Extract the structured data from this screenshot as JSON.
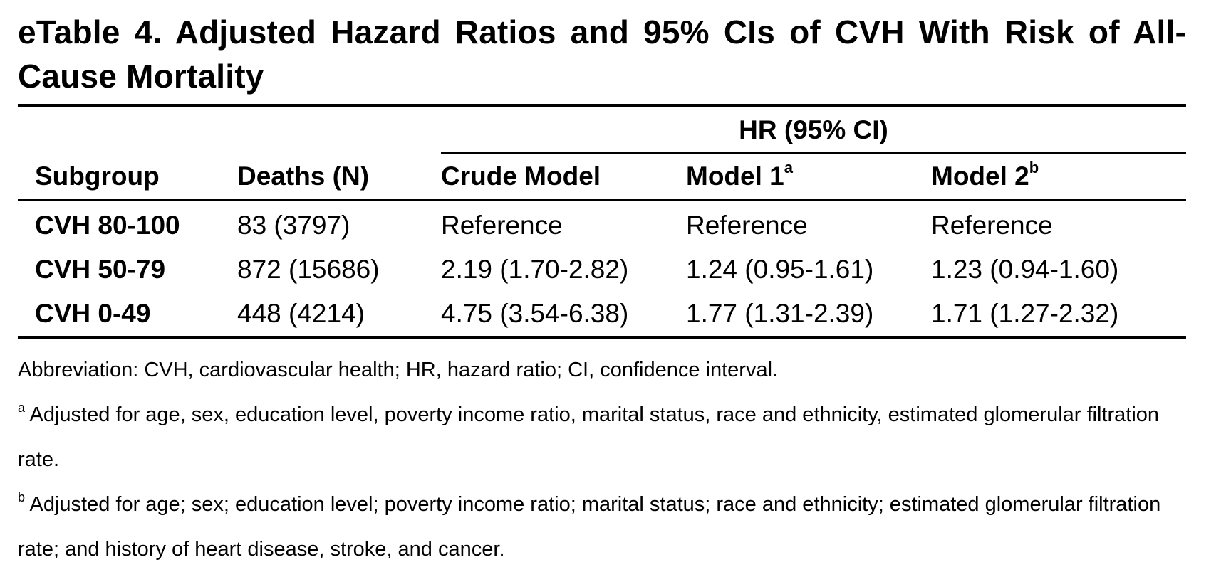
{
  "title": "eTable 4. Adjusted Hazard Ratios and 95% CIs of CVH With Risk of All-Cause Mortality",
  "table": {
    "group_header": "HR (95% CI)",
    "columns": {
      "subgroup": "Subgroup",
      "deaths": "Deaths (N)",
      "crude": "Crude Model",
      "model1": "Model 1",
      "model1_sup": "a",
      "model2": "Model 2",
      "model2_sup": "b"
    },
    "rows": [
      {
        "subgroup": "CVH 80-100",
        "deaths": "83 (3797)",
        "crude": "Reference",
        "model1": "Reference",
        "model2": "Reference"
      },
      {
        "subgroup": "CVH 50-79",
        "deaths": "872 (15686)",
        "crude": "2.19 (1.70-2.82)",
        "model1": "1.24 (0.95-1.61)",
        "model2": "1.23 (0.94-1.60)"
      },
      {
        "subgroup": "CVH 0-49",
        "deaths": "448 (4214)",
        "crude": "4.75 (3.54-6.38)",
        "model1": "1.77 (1.31-2.39)",
        "model2": "1.71 (1.27-2.32)"
      }
    ]
  },
  "notes": {
    "abbreviation": "Abbreviation: CVH, cardiovascular health; HR, hazard ratio; CI, confidence interval.",
    "footnote_a_mark": "a",
    "footnote_a": " Adjusted for age, sex, education level, poverty income ratio, marital status, race and ethnicity, estimated glomerular filtration rate.",
    "footnote_b_mark": "b",
    "footnote_b": " Adjusted for age; sex; education level; poverty income ratio; marital status; race and ethnicity; estimated glomerular filtration rate; and history of heart disease, stroke, and cancer."
  }
}
